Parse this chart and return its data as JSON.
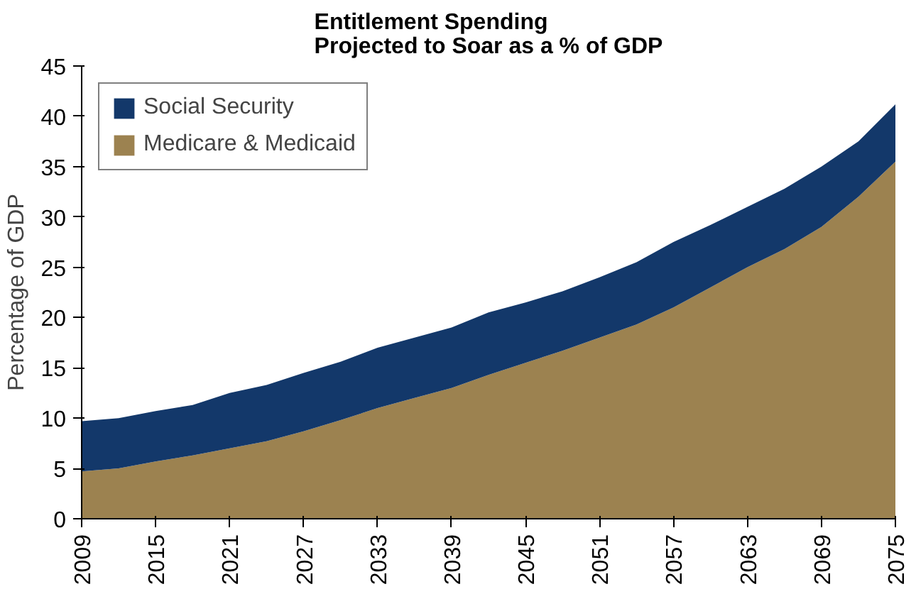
{
  "chart_data": {
    "type": "area",
    "stacked": true,
    "title": "Entitlement Spending\nProjected to Soar as a % of GDP",
    "ylabel": "Percentage of GDP",
    "x": [
      2009,
      2012,
      2015,
      2018,
      2021,
      2024,
      2027,
      2030,
      2033,
      2036,
      2039,
      2042,
      2045,
      2048,
      2051,
      2054,
      2057,
      2060,
      2063,
      2066,
      2069,
      2072,
      2075
    ],
    "series": [
      {
        "name": "Medicare & Medicaid",
        "color": "#9c8250",
        "values": [
          4.7,
          5.0,
          5.7,
          6.3,
          7.0,
          7.7,
          8.7,
          9.8,
          11.0,
          12.0,
          13.0,
          14.3,
          15.5,
          16.7,
          18.0,
          19.3,
          21.0,
          23.0,
          25.0,
          26.8,
          29.0,
          32.0,
          35.5
        ]
      },
      {
        "name": "Social Security",
        "color": "#13386a",
        "values": [
          5.0,
          5.0,
          5.0,
          5.0,
          5.5,
          5.6,
          5.8,
          5.8,
          6.0,
          6.0,
          6.0,
          6.2,
          6.0,
          5.9,
          6.0,
          6.2,
          6.5,
          6.2,
          6.0,
          6.0,
          6.0,
          5.5,
          5.7
        ]
      }
    ],
    "xlim": [
      2009,
      2075
    ],
    "xticks": [
      2009,
      2015,
      2021,
      2027,
      2033,
      2039,
      2045,
      2051,
      2057,
      2063,
      2069,
      2075
    ],
    "ylim": [
      0,
      45
    ],
    "yticks": [
      0,
      5,
      10,
      15,
      20,
      25,
      30,
      35,
      40,
      45
    ],
    "grid": false,
    "legend": "top left"
  }
}
